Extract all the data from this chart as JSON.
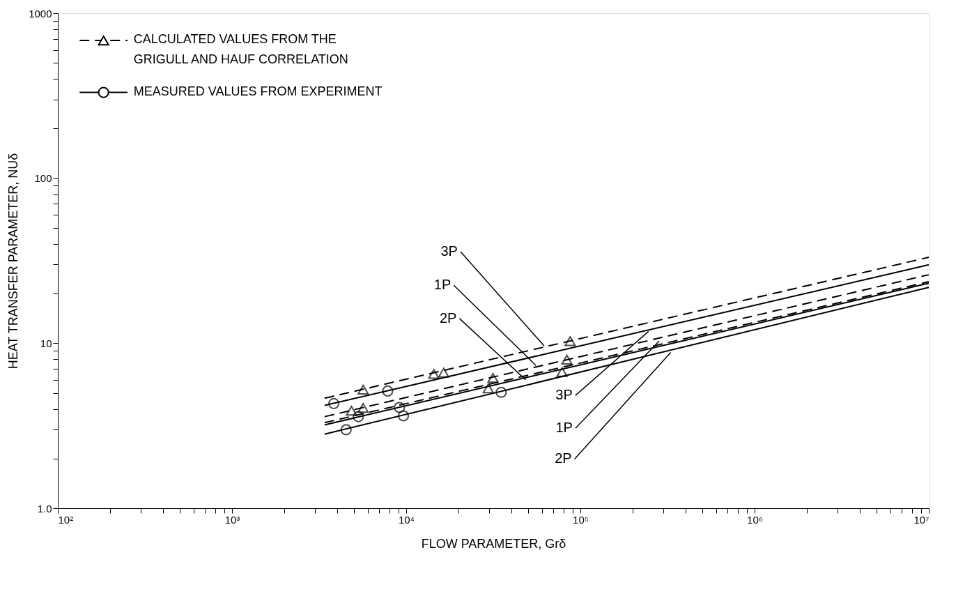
{
  "chart_data": {
    "type": "line",
    "xlabel": "FLOW PARAMETER, Grδ",
    "ylabel": "HEAT TRANSFER PARAMETER, NUδ",
    "xlim": [
      100,
      10000000
    ],
    "ylim": [
      1,
      1000
    ],
    "log": "xy",
    "grid": false,
    "legend": "top left",
    "xticks": [
      {
        "value": 100,
        "label": "10²"
      },
      {
        "value": 200,
        "label": null
      },
      {
        "value": 300,
        "label": null
      },
      {
        "value": 400,
        "label": null
      },
      {
        "value": 500,
        "label": null
      },
      {
        "value": 600,
        "label": null
      },
      {
        "value": 700,
        "label": null
      },
      {
        "value": 800,
        "label": null
      },
      {
        "value": 900,
        "label": null
      },
      {
        "value": 1000,
        "label": "10³"
      },
      {
        "value": 2000,
        "label": null
      },
      {
        "value": 3000,
        "label": null
      },
      {
        "value": 4000,
        "label": null
      },
      {
        "value": 5000,
        "label": null
      },
      {
        "value": 6000,
        "label": null
      },
      {
        "value": 7000,
        "label": null
      },
      {
        "value": 8000,
        "label": null
      },
      {
        "value": 9000,
        "label": null
      },
      {
        "value": 10000,
        "label": "10⁴"
      },
      {
        "value": 20000,
        "label": null
      },
      {
        "value": 30000,
        "label": null
      },
      {
        "value": 40000,
        "label": null
      },
      {
        "value": 50000,
        "label": null
      },
      {
        "value": 60000,
        "label": null
      },
      {
        "value": 70000,
        "label": null
      },
      {
        "value": 80000,
        "label": null
      },
      {
        "value": 90000,
        "label": null
      },
      {
        "value": 100000,
        "label": "10⁵"
      },
      {
        "value": 200000,
        "label": null
      },
      {
        "value": 300000,
        "label": null
      },
      {
        "value": 400000,
        "label": null
      },
      {
        "value": 500000,
        "label": null
      },
      {
        "value": 600000,
        "label": null
      },
      {
        "value": 700000,
        "label": null
      },
      {
        "value": 800000,
        "label": null
      },
      {
        "value": 900000,
        "label": null
      },
      {
        "value": 1000000,
        "label": "10⁶"
      },
      {
        "value": 2000000,
        "label": null
      },
      {
        "value": 3000000,
        "label": null
      },
      {
        "value": 4000000,
        "label": null
      },
      {
        "value": 5000000,
        "label": null
      },
      {
        "value": 6000000,
        "label": null
      },
      {
        "value": 7000000,
        "label": null
      },
      {
        "value": 8000000,
        "label": null
      },
      {
        "value": 9000000,
        "label": null
      },
      {
        "value": 10000000,
        "label": "10⁷"
      }
    ],
    "yticks": [
      {
        "value": 1,
        "label": "1.0"
      },
      {
        "value": 2,
        "label": null
      },
      {
        "value": 3,
        "label": null
      },
      {
        "value": 4,
        "label": null
      },
      {
        "value": 5,
        "label": null
      },
      {
        "value": 6,
        "label": null
      },
      {
        "value": 7,
        "label": null
      },
      {
        "value": 8,
        "label": null
      },
      {
        "value": 9,
        "label": null
      },
      10,
      {
        "value": 20,
        "label": null
      },
      {
        "value": 30,
        "label": null
      },
      {
        "value": 40,
        "label": null
      },
      {
        "value": 50,
        "label": null
      },
      {
        "value": 60,
        "label": null
      },
      {
        "value": 70,
        "label": null
      },
      {
        "value": 80,
        "label": null
      },
      {
        "value": 90,
        "label": null
      },
      100,
      {
        "value": 200,
        "label": null
      },
      {
        "value": 300,
        "label": null
      },
      {
        "value": 400,
        "label": null
      },
      {
        "value": 500,
        "label": null
      },
      {
        "value": 600,
        "label": null
      },
      {
        "value": 700,
        "label": null
      },
      {
        "value": 800,
        "label": null
      },
      {
        "value": 900,
        "label": null
      },
      1000
    ],
    "series": [
      {
        "color": "#000000",
        "line_style": "dashed",
        "marker": "none",
        "x": [
          3400,
          10000000
        ],
        "values": [
          4.64,
          33.2
        ]
      },
      {
        "color": "#000000",
        "line_style": "solid",
        "marker": "none",
        "x": [
          3400,
          10000000
        ],
        "values": [
          4.2,
          29.9
        ]
      },
      {
        "color": "#000000",
        "line_style": "dashed",
        "marker": "none",
        "x": [
          3400,
          10000000
        ],
        "values": [
          3.59,
          26.0
        ]
      },
      {
        "color": "#000000",
        "line_style": "dashed",
        "marker": "none",
        "x": [
          3400,
          10000000
        ],
        "values": [
          3.3,
          23.6
        ]
      },
      {
        "color": "#000000",
        "line_style": "solid",
        "marker": "none",
        "x": [
          3400,
          10000000
        ],
        "values": [
          3.2,
          23.1
        ]
      },
      {
        "color": "#000000",
        "line_style": "solid",
        "marker": "none",
        "x": [
          3400,
          10000000
        ],
        "values": [
          2.81,
          21.8
        ]
      },
      {
        "type": "scatter",
        "name": "CALCULATED VALUES FROM THE GRIGULL AND HAUF CORRELATION",
        "color": "#000000",
        "marker": "triangle",
        "line_style": "dashed",
        "x": [
          5660,
          4850,
          5660,
          14400,
          16400,
          31500,
          29600,
          87300,
          83600,
          78400
        ],
        "values": [
          5.23,
          3.9,
          4.05,
          6.51,
          6.63,
          6.16,
          5.33,
          10.3,
          7.96,
          6.69
        ]
      },
      {
        "type": "scatter",
        "name": "MEASURED VALUES FROM EXPERIMENT",
        "color": "#000000",
        "marker": "circle",
        "line_style": "solid",
        "x": [
          3840,
          7830,
          5310,
          9140,
          9640,
          4520,
          35100
        ],
        "values": [
          4.31,
          5.13,
          3.59,
          4.08,
          3.63,
          2.99,
          5.04
        ]
      }
    ],
    "annotations": [
      {
        "text": "3P",
        "x": 61900,
        "y": 9.64
      },
      {
        "text": "1P",
        "x": 55600,
        "y": 7.33
      },
      {
        "text": "2P",
        "x": 48500,
        "y": 6.0
      },
      {
        "text": "3P",
        "x": 246000,
        "y": 11.8
      },
      {
        "text": "1P",
        "x": 283000,
        "y": 10.3
      },
      {
        "text": "2P",
        "x": 330000,
        "y": 8.8
      }
    ]
  }
}
